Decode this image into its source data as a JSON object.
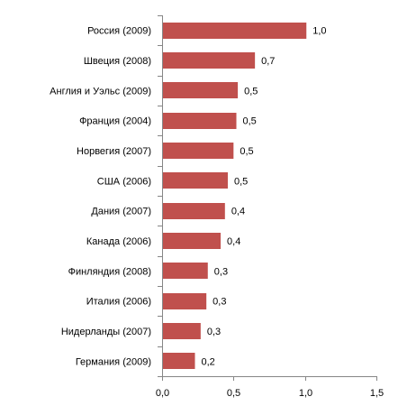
{
  "chart_data": {
    "type": "bar",
    "orientation": "horizontal",
    "title": "",
    "xlabel": "",
    "ylabel": "",
    "categories": [
      "Россия (2009)",
      "Швеция (2008)",
      "Англия и Уэльс (2009)",
      "Франция (2004)",
      "Норвегия (2007)",
      "США (2006)",
      "Дания (2007)",
      "Канада (2006)",
      "Финляндия (2008)",
      "Италия (2006)",
      "Нидерланды (2007)",
      "Германия (2009)"
    ],
    "values": [
      1.01,
      0.65,
      0.53,
      0.52,
      0.5,
      0.46,
      0.44,
      0.41,
      0.32,
      0.31,
      0.27,
      0.23
    ],
    "data_labels": [
      "1,0",
      "0,7",
      "0,5",
      "0,5",
      "0,5",
      "0,5",
      "0,4",
      "0,4",
      "0,3",
      "0,3",
      "0,3",
      "0,2"
    ],
    "xlim": [
      0,
      1.5
    ],
    "x_ticks": [
      0,
      0.5,
      1.0,
      1.5
    ],
    "x_tick_labels": [
      "0,0",
      "0,5",
      "1,0",
      "1,5"
    ],
    "grid": false,
    "legend": "none",
    "bar_color": "#c0504d",
    "axis_color": "#868686"
  }
}
